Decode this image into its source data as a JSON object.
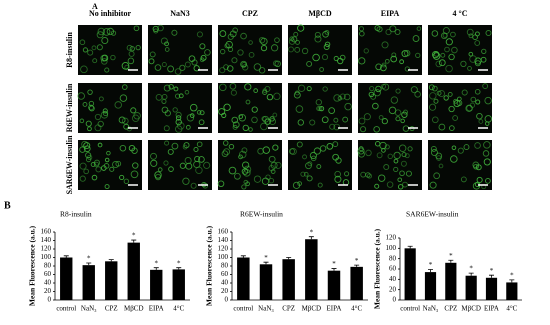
{
  "panel_a": {
    "label": "A",
    "columns": [
      "No inhibitor",
      "NaN3",
      "CPZ",
      "MβCD",
      "EIPA",
      "4 °C"
    ],
    "rows": [
      "R8-insulin",
      "R6EW-insulin",
      "SAR6EW-insulin"
    ]
  },
  "panel_b": {
    "label": "B"
  },
  "chart_data": [
    {
      "type": "bar",
      "title": "R8-insulin",
      "y_label": "Mean Fluorescence (a.u.)",
      "categories": [
        "control",
        "NaN₃",
        "CPZ",
        "MβCD",
        "EIPA",
        "4°C"
      ],
      "values": [
        100,
        82,
        91,
        135,
        71,
        72
      ],
      "errors": [
        4,
        5,
        4,
        6,
        5,
        4
      ],
      "significance": [
        null,
        "*",
        null,
        "*",
        "*",
        "*"
      ],
      "color": "#000000",
      "ylim": [
        0,
        160
      ],
      "yticks": [
        0,
        20,
        40,
        60,
        80,
        100,
        120,
        140,
        160
      ]
    },
    {
      "type": "bar",
      "title": "R6EW-insulin",
      "y_label": "Mean Fluorescence (a.u.)",
      "categories": [
        "control",
        "NaN₃",
        "CPZ",
        "MβCD",
        "EIPA",
        "4°C"
      ],
      "values": [
        100,
        84,
        96,
        143,
        69,
        78
      ],
      "errors": [
        4,
        5,
        4,
        6,
        5,
        4
      ],
      "significance": [
        null,
        "*",
        null,
        "*",
        "*",
        "*"
      ],
      "color": "#000000",
      "ylim": [
        0,
        160
      ],
      "yticks": [
        0,
        20,
        40,
        60,
        80,
        100,
        120,
        140,
        160
      ]
    },
    {
      "type": "bar",
      "title": "SAR6EW-insulin",
      "y_label": "Mean Fluorescence (a.u.)",
      "categories": [
        "control",
        "NaN₃",
        "CPZ",
        "MβCD",
        "EIPA",
        "4°C"
      ],
      "values": [
        100,
        54,
        72,
        47,
        43,
        34
      ],
      "errors": [
        4,
        5,
        5,
        5,
        5,
        5
      ],
      "significance": [
        null,
        "*",
        "*",
        "*",
        "*",
        "*"
      ],
      "color": "#000000",
      "ylim": [
        0,
        120
      ],
      "yticks": [
        0,
        20,
        40,
        60,
        80,
        100,
        120
      ]
    }
  ]
}
